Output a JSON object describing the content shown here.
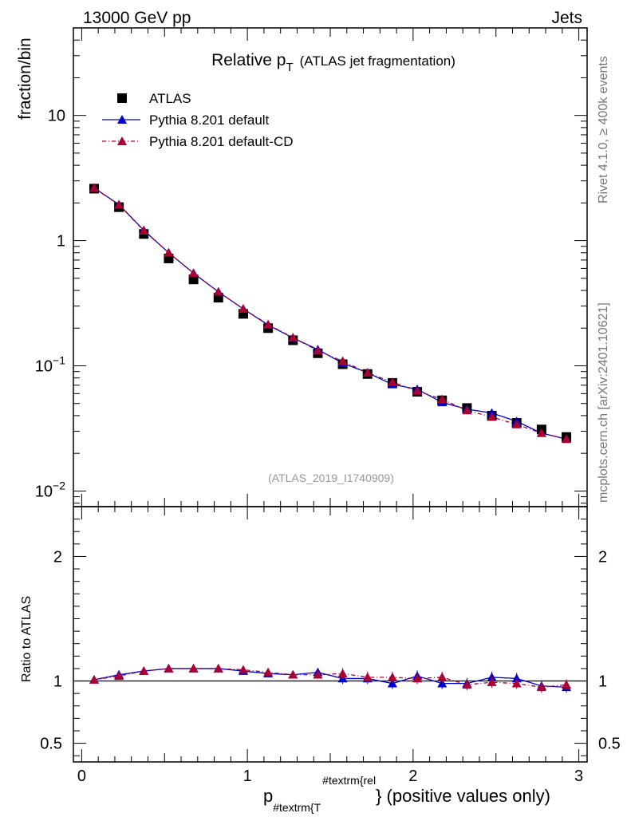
{
  "header": {
    "left": "13000 GeV pp",
    "right": "Jets"
  },
  "side_text": {
    "rivet": "Rivet 4.1.0, ≥ 400k events",
    "mcplots": "mcplots.cern.ch [arXiv:2401.10621]"
  },
  "chart_data": [
    {
      "type": "scatter",
      "panel": "main",
      "title_main": "Relative p",
      "title_sub": "T",
      "title_suffix": "(ATLAS jet fragmentation)",
      "analysis_id": "(ATLAS_2019_I1740909)",
      "ylabel": "fraction/bin",
      "yscale": "log",
      "ylim": [
        0.0075,
        50
      ],
      "xlim": [
        -0.05,
        3.05
      ],
      "ytick_labels": [
        {
          "value": 10,
          "base": "10",
          "exp": ""
        },
        {
          "value": 1,
          "base": "1",
          "exp": ""
        },
        {
          "value": 0.1,
          "base": "10",
          "exp": "−1"
        },
        {
          "value": 0.01,
          "base": "10",
          "exp": "−2"
        }
      ],
      "legend": [
        "ATLAS",
        "Pythia 8.201 default",
        "Pythia 8.201 default-CD"
      ],
      "colors": {
        "data": "#000000",
        "default": "#0000cc",
        "cd": "#aa0033"
      },
      "x": [
        0.075,
        0.225,
        0.375,
        0.525,
        0.675,
        0.825,
        0.975,
        1.125,
        1.275,
        1.425,
        1.575,
        1.725,
        1.875,
        2.025,
        2.175,
        2.325,
        2.475,
        2.625,
        2.775,
        2.925
      ],
      "series": [
        {
          "name": "ATLAS",
          "values": [
            2.6,
            1.85,
            1.13,
            0.72,
            0.49,
            0.35,
            0.26,
            0.2,
            0.16,
            0.126,
            0.103,
            0.086,
            0.073,
            0.062,
            0.053,
            0.046,
            0.04,
            0.035,
            0.031,
            0.027
          ]
        },
        {
          "name": "Pythia 8.201 default",
          "values": [
            2.64,
            1.94,
            1.21,
            0.8,
            0.55,
            0.39,
            0.285,
            0.212,
            0.167,
            0.135,
            0.105,
            0.088,
            0.071,
            0.065,
            0.051,
            0.045,
            0.042,
            0.036,
            0.029,
            0.026
          ]
        },
        {
          "name": "Pythia 8.201 default-CD",
          "values": [
            2.63,
            1.93,
            1.2,
            0.8,
            0.55,
            0.39,
            0.285,
            0.214,
            0.168,
            0.132,
            0.109,
            0.088,
            0.074,
            0.063,
            0.054,
            0.044,
            0.039,
            0.034,
            0.029,
            0.026
          ]
        }
      ]
    },
    {
      "type": "line",
      "panel": "ratio",
      "ylabel": "Ratio to ATLAS",
      "xlabel_main": "p",
      "xlabel_sub": "#textrm{T",
      "xlabel_sup": "#textrm{rel",
      "xlabel_suffix": "} (positive values only)",
      "ylim": [
        0.35,
        2.4
      ],
      "xlim": [
        -0.05,
        3.05
      ],
      "ytick_labels": [
        "2",
        "1",
        "0.5"
      ],
      "ytick_values": [
        2,
        1,
        0.5
      ],
      "xtick_labels": [
        "0",
        "1",
        "2",
        "3"
      ],
      "xtick_values": [
        0,
        1,
        2,
        3
      ],
      "x": [
        0.075,
        0.225,
        0.375,
        0.525,
        0.675,
        0.825,
        0.975,
        1.125,
        1.275,
        1.425,
        1.575,
        1.725,
        1.875,
        2.025,
        2.175,
        2.325,
        2.475,
        2.625,
        2.775,
        2.925
      ],
      "series": [
        {
          "name": "Pythia 8.201 default",
          "values": [
            1.01,
            1.05,
            1.08,
            1.1,
            1.1,
            1.1,
            1.08,
            1.06,
            1.05,
            1.07,
            1.02,
            1.02,
            0.98,
            1.04,
            0.98,
            0.98,
            1.03,
            1.02,
            0.96,
            0.95
          ]
        },
        {
          "name": "Pythia 8.201 default-CD",
          "values": [
            1.01,
            1.04,
            1.08,
            1.1,
            1.1,
            1.1,
            1.09,
            1.07,
            1.05,
            1.05,
            1.06,
            1.03,
            1.03,
            1.02,
            1.03,
            0.97,
            0.99,
            0.98,
            0.95,
            0.97
          ]
        }
      ]
    }
  ]
}
